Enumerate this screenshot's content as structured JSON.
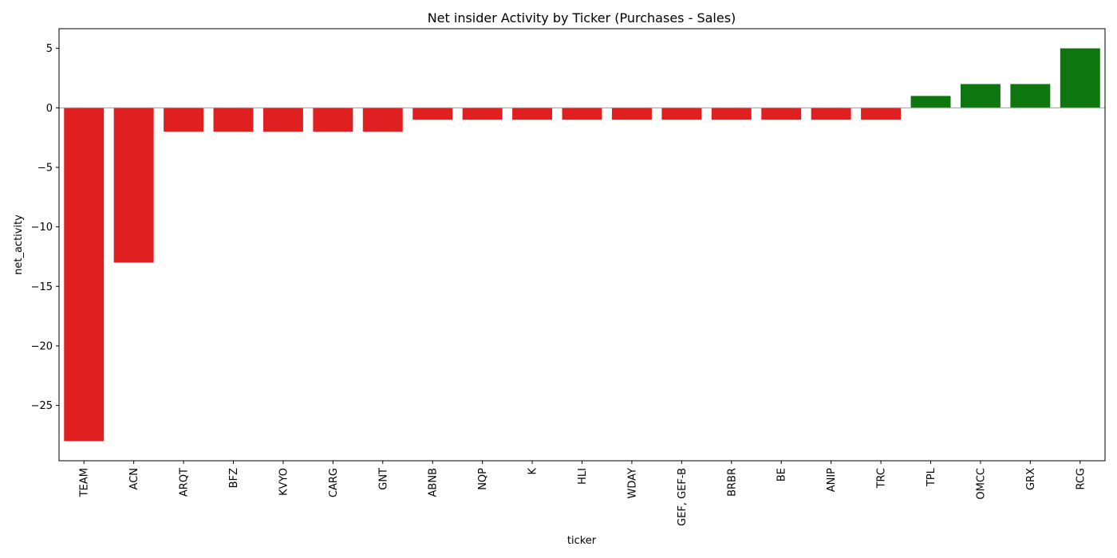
{
  "chart_data": {
    "type": "bar",
    "title": "Net insider Activity by Ticker (Purchases - Sales)",
    "xlabel": "ticker",
    "ylabel": "net_activity",
    "categories": [
      "TEAM",
      "ACN",
      "ARQT",
      "BFZ",
      "KVYO",
      "CARG",
      "GNT",
      "ABNB",
      "NQP",
      "K",
      "HLI",
      "WDAY",
      "GEF, GEF-B",
      "BRBR",
      "BE",
      "ANIP",
      "TRC",
      "TPL",
      "OMCC",
      "GRX",
      "RCG"
    ],
    "values": [
      -28,
      -13,
      -2,
      -2,
      -2,
      -2,
      -2,
      -1,
      -1,
      -1,
      -1,
      -1,
      -1,
      -1,
      -1,
      -1,
      -1,
      1,
      2,
      2,
      5
    ],
    "yticks": [
      5,
      0,
      -5,
      -10,
      -15,
      -20,
      -25
    ],
    "ytick_labels": [
      "5",
      "0",
      "−5",
      "−10",
      "−15",
      "−20",
      "−25"
    ],
    "ylim": [
      -29.65,
      6.65
    ],
    "grid": false,
    "zero_line": true,
    "colors": {
      "negative": "#e02020",
      "positive": "#0e760e",
      "zero_line": "#999999",
      "axes": "#000000"
    }
  }
}
